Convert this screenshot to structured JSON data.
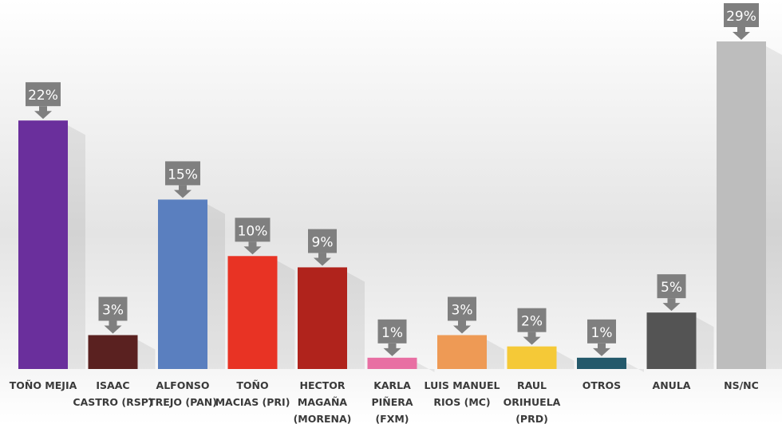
{
  "chart_data": {
    "type": "bar",
    "title": "",
    "xlabel": "",
    "ylabel": "",
    "ylim": [
      0,
      29
    ],
    "grid": false,
    "categories": [
      [
        "TOÑO MEJIA"
      ],
      [
        "ISAAC",
        "CASTRO (RSP)"
      ],
      [
        "ALFONSO",
        "TREJO (PAN)"
      ],
      [
        "TOÑO",
        "MACIAS (PRI)"
      ],
      [
        "HECTOR",
        "MAGAÑA",
        "(MORENA)"
      ],
      [
        "KARLA",
        "PIÑERA",
        "(FXM)"
      ],
      [
        "LUIS MANUEL",
        "RIOS (MC)"
      ],
      [
        "RAUL",
        "ORIHUELA",
        "(PRD)"
      ],
      [
        "OTROS"
      ],
      [
        "ANULA"
      ],
      [
        "NS/NC"
      ]
    ],
    "values": [
      22,
      3,
      15,
      10,
      9,
      1,
      3,
      2,
      1,
      5,
      29
    ],
    "data_labels": [
      "22%",
      "3%",
      "15%",
      "10%",
      "9%",
      "1%",
      "3%",
      "2%",
      "1%",
      "5%",
      "29%"
    ],
    "colors": [
      "#6a2f9c",
      "#5a2120",
      "#5a7fbf",
      "#e83324",
      "#b0231c",
      "#e86fa3",
      "#ee9a55",
      "#f5c937",
      "#24596b",
      "#545454",
      "#bdbdbd"
    ],
    "label_box_color": "#7f7f7f"
  }
}
